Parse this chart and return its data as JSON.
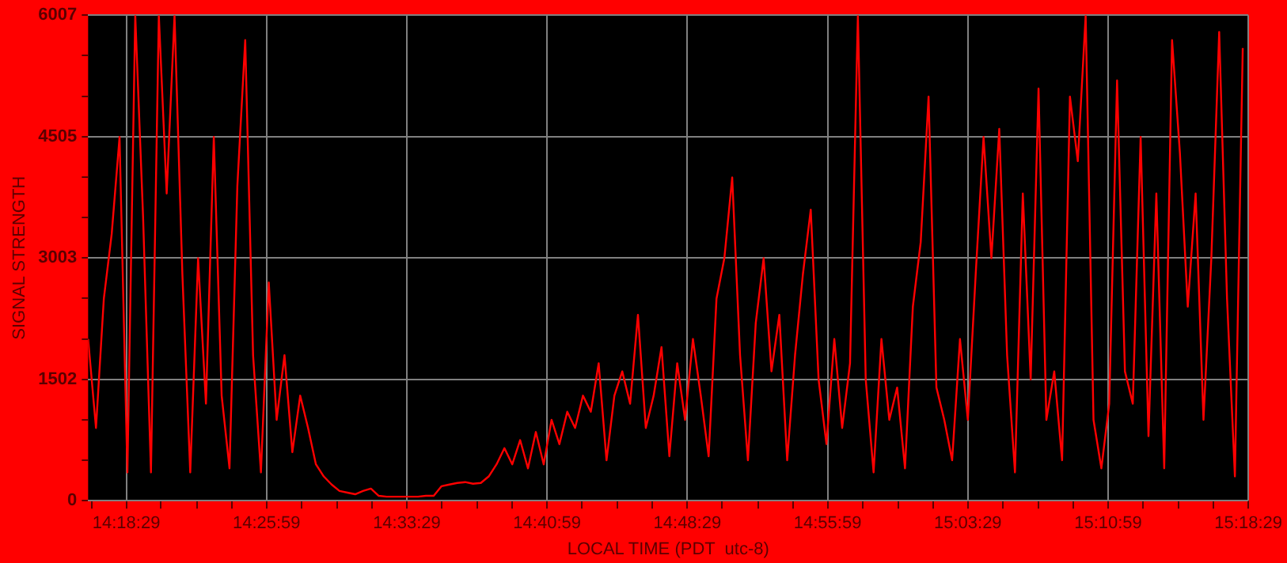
{
  "chart_data": {
    "type": "line",
    "xlabel": "LOCAL TIME (PDT  utc-8)",
    "ylabel": "SIGNAL STRENGTH",
    "xlim": [
      14.274,
      15.308
    ],
    "xticks": [
      {
        "value": 14.277,
        "label": null
      },
      {
        "value": 14.308,
        "label": "14:18:29"
      },
      {
        "value": 14.339,
        "label": null
      },
      {
        "value": 14.371,
        "label": null
      },
      {
        "value": 14.402,
        "label": null
      },
      {
        "value": 14.433,
        "label": "14:25:59"
      },
      {
        "value": 14.464,
        "label": null
      },
      {
        "value": 14.496,
        "label": null
      },
      {
        "value": 14.527,
        "label": null
      },
      {
        "value": 14.558,
        "label": "14:33:29"
      },
      {
        "value": 14.589,
        "label": null
      },
      {
        "value": 14.621,
        "label": null
      },
      {
        "value": 14.652,
        "label": null
      },
      {
        "value": 14.683,
        "label": "14:40:59"
      },
      {
        "value": 14.714,
        "label": null
      },
      {
        "value": 14.746,
        "label": null
      },
      {
        "value": 14.777,
        "label": null
      },
      {
        "value": 14.808,
        "label": "14:48:29"
      },
      {
        "value": 14.839,
        "label": null
      },
      {
        "value": 14.871,
        "label": null
      },
      {
        "value": 14.902,
        "label": null
      },
      {
        "value": 14.933,
        "label": "14:55:59"
      },
      {
        "value": 14.964,
        "label": null
      },
      {
        "value": 14.996,
        "label": null
      },
      {
        "value": 15.027,
        "label": null
      },
      {
        "value": 15.058,
        "label": "15:03:29"
      },
      {
        "value": 15.089,
        "label": null
      },
      {
        "value": 15.121,
        "label": null
      },
      {
        "value": 15.152,
        "label": null
      },
      {
        "value": 15.183,
        "label": "15:10:59"
      },
      {
        "value": 15.214,
        "label": null
      },
      {
        "value": 15.246,
        "label": null
      },
      {
        "value": 15.277,
        "label": null
      },
      {
        "value": 15.308,
        "label": "15:18:29"
      }
    ],
    "ylim": [
      0,
      6007
    ],
    "yticks": [
      0,
      {
        "value": 501,
        "label": null
      },
      {
        "value": 1001,
        "label": null
      },
      1502,
      {
        "value": 2002,
        "label": null
      },
      {
        "value": 2503,
        "label": null
      },
      3003,
      {
        "value": 3504,
        "label": null
      },
      {
        "value": 4004,
        "label": null
      },
      4505,
      {
        "value": 5005,
        "label": null
      },
      {
        "value": 5506,
        "label": null
      },
      6007
    ],
    "grid": true,
    "legend": false,
    "marker": "none",
    "line_style": "solid",
    "series": [
      {
        "color": "#ff0000",
        "x": [
          14.274,
          14.281,
          14.288,
          14.295,
          14.302,
          14.309,
          14.316,
          14.323,
          14.33,
          14.337,
          14.344,
          14.351,
          14.358,
          14.365,
          14.372,
          14.379,
          14.386,
          14.393,
          14.4,
          14.407,
          14.414,
          14.421,
          14.428,
          14.435,
          14.442,
          14.449,
          14.456,
          14.463,
          14.47,
          14.477,
          14.484,
          14.491,
          14.498,
          14.505,
          14.512,
          14.519,
          14.526,
          14.533,
          14.54,
          14.547,
          14.554,
          14.561,
          14.568,
          14.575,
          14.582,
          14.589,
          14.596,
          14.603,
          14.61,
          14.617,
          14.624,
          14.631,
          14.638,
          14.645,
          14.652,
          14.659,
          14.666,
          14.673,
          14.68,
          14.687,
          14.694,
          14.701,
          14.708,
          14.715,
          14.722,
          14.729,
          14.736,
          14.743,
          14.75,
          14.757,
          14.764,
          14.771,
          14.778,
          14.785,
          14.792,
          14.799,
          14.806,
          14.813,
          14.82,
          14.827,
          14.834,
          14.841,
          14.848,
          14.855,
          14.862,
          14.869,
          14.876,
          14.883,
          14.89,
          14.897,
          14.904,
          14.911,
          14.918,
          14.925,
          14.932,
          14.939,
          14.946,
          14.953,
          14.96,
          14.967,
          14.974,
          14.981,
          14.988,
          14.995,
          15.002,
          15.009,
          15.016,
          15.023,
          15.03,
          15.037,
          15.044,
          15.051,
          15.058,
          15.065,
          15.072,
          15.079,
          15.086,
          15.093,
          15.1,
          15.107,
          15.114,
          15.121,
          15.128,
          15.135,
          15.142,
          15.149,
          15.156,
          15.163,
          15.17,
          15.177,
          15.184,
          15.191,
          15.198,
          15.205,
          15.212,
          15.219,
          15.226,
          15.233,
          15.24,
          15.247,
          15.254,
          15.261,
          15.268,
          15.275,
          15.282,
          15.289,
          15.296,
          15.303
        ],
        "values": [
          2000,
          900,
          2500,
          3300,
          4500,
          350,
          6007,
          3500,
          350,
          6007,
          3800,
          6007,
          2800,
          350,
          3000,
          1200,
          4500,
          1300,
          400,
          3900,
          5700,
          1800,
          350,
          2700,
          1000,
          1800,
          600,
          1300,
          900,
          450,
          300,
          200,
          120,
          100,
          80,
          120,
          150,
          60,
          50,
          50,
          50,
          50,
          50,
          60,
          60,
          180,
          200,
          220,
          230,
          210,
          220,
          300,
          450,
          650,
          450,
          750,
          400,
          850,
          450,
          1000,
          700,
          1100,
          900,
          1300,
          1100,
          1700,
          500,
          1300,
          1600,
          1200,
          2300,
          900,
          1300,
          1900,
          550,
          1700,
          1000,
          2000,
          1300,
          550,
          2500,
          3000,
          4000,
          1800,
          500,
          2200,
          3000,
          1600,
          2300,
          500,
          1800,
          2800,
          3600,
          1500,
          700,
          2000,
          900,
          1700,
          6007,
          1500,
          350,
          2000,
          1000,
          1400,
          400,
          2400,
          3200,
          5000,
          1400,
          1000,
          500,
          2000,
          1000,
          2800,
          4500,
          3000,
          4600,
          1800,
          350,
          3800,
          1500,
          5100,
          1000,
          1600,
          500,
          5000,
          4200,
          6007,
          1000,
          400,
          1200,
          5200,
          1600,
          1200,
          4500,
          800,
          3800,
          400,
          5700,
          4300,
          2400,
          3800,
          1000,
          3000,
          5800,
          2500,
          300,
          5600
        ]
      }
    ]
  }
}
